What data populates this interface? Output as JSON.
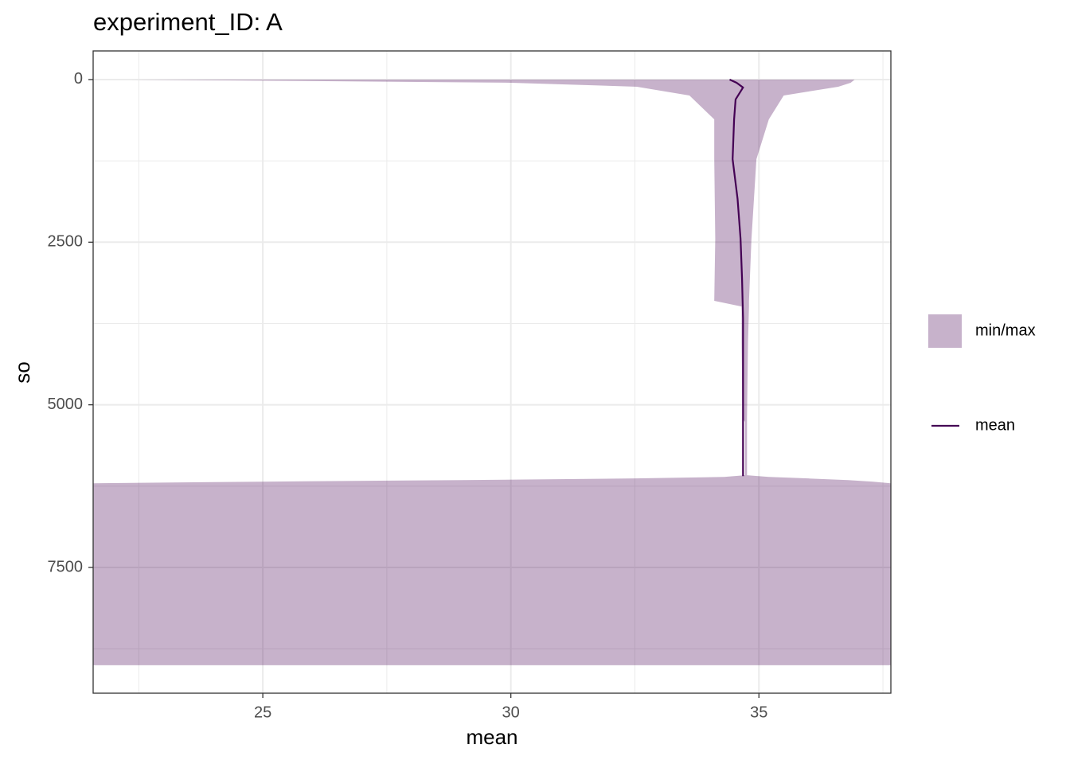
{
  "chart_data": {
    "type": "ribbon",
    "title": "experiment_ID: A",
    "x_label": "mean",
    "y_label": "so",
    "xlim": [
      21.58,
      37.66
    ],
    "xticks": [
      25,
      30,
      35
    ],
    "x_minor_ticks": [
      22.5,
      27.5,
      32.5,
      37.5
    ],
    "ylim": [
      -440,
      9433
    ],
    "y_reversed": true,
    "yticks": [
      0,
      2500,
      5000,
      7500
    ],
    "y_minor_ticks": [
      1250,
      3750,
      6250,
      8750
    ],
    "grid": true,
    "legend_position": "right",
    "series": [
      {
        "name": "min/max",
        "color": "#440154",
        "alpha": 0.3,
        "depth": [
          0,
          49,
          110,
          245,
          612,
          1224,
          2448,
          3402,
          3488,
          4039,
          5200,
          5263,
          6083,
          6108,
          6132,
          6157,
          6181,
          6206,
          9004
        ],
        "min": [
          22.35,
          30.0,
          32.54,
          33.6,
          34.1,
          34.1,
          34.12,
          34.1,
          34.65,
          34.65,
          34.67,
          34.72,
          34.72,
          34.3,
          32.5,
          29.0,
          25.0,
          21.58,
          21.58
        ],
        "max": [
          36.93,
          36.85,
          36.6,
          35.5,
          35.2,
          34.95,
          34.85,
          34.8,
          34.8,
          34.78,
          34.76,
          34.76,
          34.76,
          35.2,
          36.0,
          36.8,
          37.3,
          37.66,
          37.66
        ]
      },
      {
        "name": "mean",
        "color": "#440154",
        "depth": [
          0,
          49,
          122,
          220,
          306,
          612,
          1224,
          1836,
          2448,
          3060,
          3672,
          6096
        ],
        "values": [
          34.41,
          34.55,
          34.68,
          34.6,
          34.53,
          34.5,
          34.47,
          34.57,
          34.63,
          34.66,
          34.68,
          34.68
        ]
      }
    ]
  }
}
